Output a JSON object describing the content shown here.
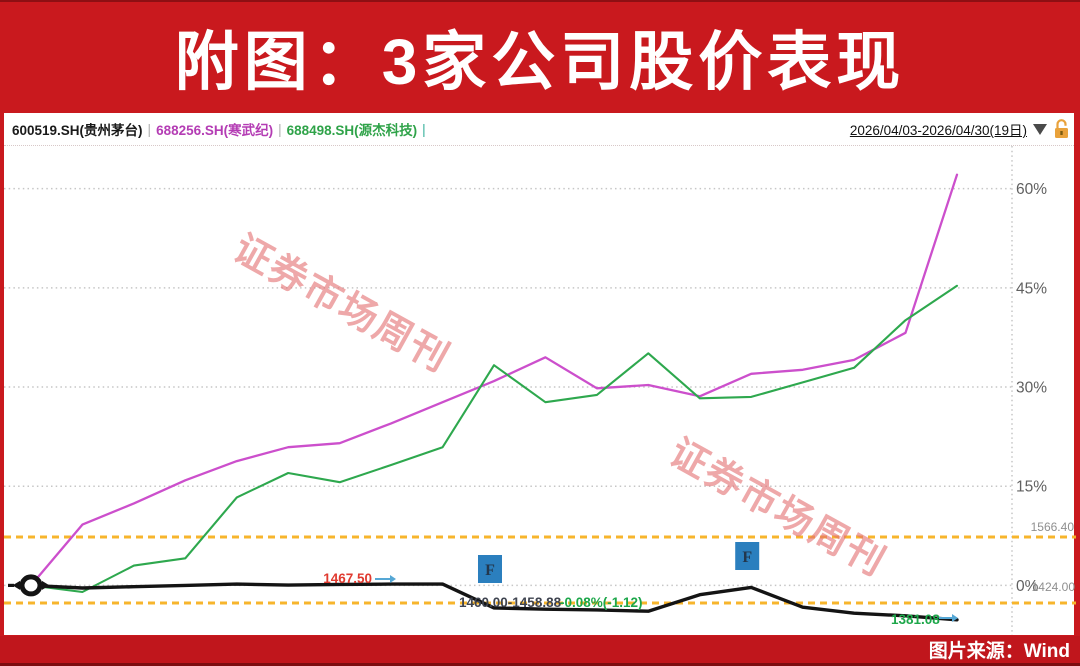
{
  "banner": {
    "title": "附图：3家公司股价表现",
    "bg_color": "#c9191e",
    "text_color": "#ffffff"
  },
  "legend": {
    "items": [
      {
        "label": "600519.SH(贵州茅台)",
        "color": "#1a1a1a"
      },
      {
        "label": "688256.SH(寒武纪)",
        "color": "#b43cb4"
      },
      {
        "label": "688498.SH(源杰科技)",
        "color": "#2fa349"
      }
    ],
    "separator": "|",
    "date_range": "2026/04/03-2026/04/30(19日)"
  },
  "watermark": {
    "text": "证券市场周刊"
  },
  "source_bar": {
    "text": "图片来源：Wind"
  },
  "chart_data": {
    "type": "line",
    "x_days": [
      0,
      1,
      2,
      3,
      4,
      5,
      6,
      7,
      8,
      9,
      10,
      11,
      12,
      13,
      14,
      15,
      16,
      17,
      18
    ],
    "series": [
      {
        "name": "600519.SH(贵州茅台)",
        "color": "#141414",
        "width": 3.4,
        "values": [
          0,
          -0.4,
          -0.2,
          0.0,
          0.2,
          0.05,
          0.15,
          0.2,
          0.2,
          -3.4,
          -3.6,
          -3.7,
          -3.9,
          -1.4,
          -0.3,
          -3.3,
          -4.2,
          -4.6,
          -5.2
        ]
      },
      {
        "name": "688256.SH(寒武纪)",
        "color": "#cc4fcc",
        "width": 2.3,
        "values": [
          0,
          9.2,
          12.4,
          15.9,
          18.8,
          20.9,
          21.5,
          24.5,
          27.7,
          30.9,
          34.5,
          29.8,
          30.3,
          28.6,
          32.0,
          32.6,
          34.1,
          38.2,
          62.1
        ]
      },
      {
        "name": "688498.SH(源杰科技)",
        "color": "#2ea84e",
        "width": 2.1,
        "values": [
          0,
          -1.0,
          3.0,
          4.1,
          13.3,
          17.0,
          15.6,
          18.2,
          20.9,
          33.3,
          27.7,
          28.8,
          35.1,
          28.3,
          28.5,
          30.7,
          32.9,
          40.1,
          45.3
        ]
      }
    ],
    "yticks": [
      {
        "label": "60%",
        "value": 60
      },
      {
        "label": "45%",
        "value": 45
      },
      {
        "label": "30%",
        "value": 30
      },
      {
        "label": "15%",
        "value": 15
      },
      {
        "label": "0%",
        "value": 0
      }
    ],
    "ylim": [
      -8,
      66
    ],
    "grid": "dotted-horizontal",
    "price_levels": [
      {
        "label": "1566.40",
        "pct": 7.32,
        "color": "#f7b52c"
      },
      {
        "label": "1424.00",
        "pct": -2.66,
        "color": "#f7b52c"
      }
    ],
    "annotations": [
      {
        "id": "last-high",
        "text": "1467.50",
        "color": "#e03a2f"
      },
      {
        "id": "range-quote",
        "text": "1460.00-1458.88",
        "color": "#3f4450"
      },
      {
        "id": "range-change",
        "text": "-0.08%(-1.12)",
        "color": "#1da74a"
      },
      {
        "id": "last-price",
        "text": "1381.08",
        "color": "#1da74a"
      }
    ],
    "flags": [
      {
        "label": "F",
        "day": 9
      },
      {
        "label": "F",
        "day": 14
      }
    ]
  }
}
